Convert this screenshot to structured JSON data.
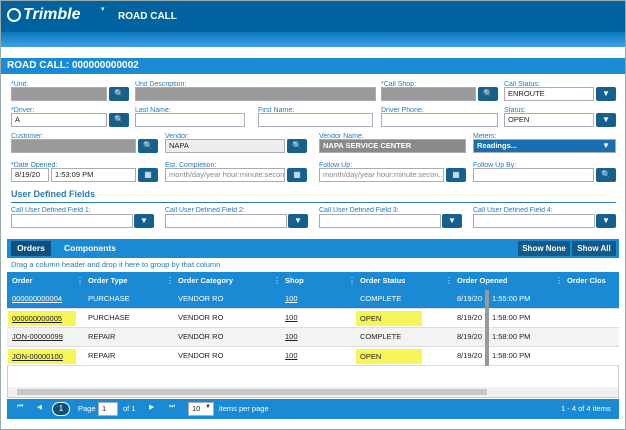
{
  "header": {
    "logo": "Trimble",
    "title": "ROAD CALL"
  },
  "form": {
    "title": "ROAD CALL: 000000000002",
    "fields": [
      {
        "label": "*Unit:"
      },
      {
        "label": "Unit Description:"
      },
      {
        "label": "*Call Shop:"
      },
      {
        "label": "Call Status:",
        "value": "ENROUTE"
      },
      {
        "label": "*Driver:",
        "value": "A"
      },
      {
        "label": "Last Name:"
      },
      {
        "label": "First Name:"
      },
      {
        "label": "Driver Phone:"
      },
      {
        "label": "Status:",
        "value": "OPEN"
      },
      {
        "label": "Customer:"
      },
      {
        "label": "Vendor:",
        "value": "NAPA"
      },
      {
        "label": "Vendor Name:",
        "value": "NAPA SERVICE CENTER"
      },
      {
        "label": "Meters:",
        "value": "Readings..."
      },
      {
        "label": "*Date Opened:",
        "value": "8/19/20",
        "time": "1:53:09 PM"
      },
      {
        "label": "Est. Completion:",
        "placeholder": "month/day/year hour:minute:secon..."
      },
      {
        "label": "Follow Up:",
        "placeholder": "month/day/year hour:minute:secon..."
      },
      {
        "label": "Follow Up By:"
      }
    ]
  },
  "udf": {
    "title": "User Defined Fields",
    "fields": [
      {
        "label": "Call User Defined Field 1:"
      },
      {
        "label": "Call User Defined Field 2:"
      },
      {
        "label": "Call User Defined Field 3:"
      },
      {
        "label": "Call User Defined Field 4:"
      }
    ]
  },
  "grid": {
    "tabs": [
      "Orders",
      "Components"
    ],
    "buttons": [
      "Show None",
      "Show All"
    ],
    "group_hint": "Drag a column header and drop it here to group by that column",
    "columns": [
      "Order",
      "Order Type",
      "Order Category",
      "Shop",
      "Order Status",
      "Order Opened",
      "Order Clos"
    ],
    "rows": [
      [
        "000000000004",
        "PURCHASE",
        "VENDOR RO",
        "100",
        "COMPLETE",
        "8/19/20",
        "1:55:00 PM"
      ],
      [
        "000000000005",
        "PURCHASE",
        "VENDOR RO",
        "100",
        "OPEN",
        "8/19/20",
        "1:58:00 PM"
      ],
      [
        "JON-00000099",
        "REPAIR",
        "VENDOR RO",
        "100",
        "COMPLETE",
        "8/19/20",
        "1:58:00 PM"
      ],
      [
        "JON-00000100",
        "REPAIR",
        "VENDOR RO",
        "100",
        "OPEN",
        "8/19/20",
        "1:58:00 PM"
      ]
    ]
  },
  "pager": {
    "current": "1",
    "page_label": "Page",
    "page_input": "1",
    "of": "of 1",
    "page_size": "10",
    "page_size_label": "items per page",
    "summary": "1 - 4 of 4 items"
  }
}
